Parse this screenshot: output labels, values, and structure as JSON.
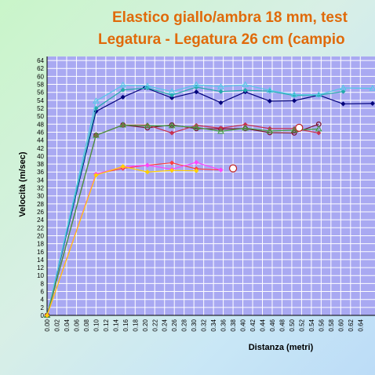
{
  "chart_data": {
    "type": "line",
    "title": "Elastico giallo/ambra 18 mm, test",
    "subtitle": "Legatura - Legatura 26 cm (campio",
    "xlabel": "Distanza (metri)",
    "ylabel": "Velocità (m/sec)",
    "xlim": [
      0,
      0.67
    ],
    "ylim": [
      0,
      65
    ],
    "x_ticks": [
      "0.00",
      "0.02",
      "0.04",
      "0.06",
      "0.08",
      "0.10",
      "0.12",
      "0.14",
      "0.16",
      "0.18",
      "0.20",
      "0.22",
      "0.24",
      "0.26",
      "0.28",
      "0.30",
      "0.32",
      "0.34",
      "0.36",
      "0.38",
      "0.40",
      "0.42",
      "0.44",
      "0.46",
      "0.48",
      "0.50",
      "0.52",
      "0.54",
      "0.56",
      "0.58",
      "0.60",
      "0.62",
      "0.64"
    ],
    "y_ticks": [
      "0",
      "2",
      "4",
      "6",
      "8",
      "10",
      "12",
      "14",
      "16",
      "18",
      "20",
      "22",
      "24",
      "26",
      "28",
      "30",
      "32",
      "34",
      "36",
      "38",
      "40",
      "42",
      "44",
      "46",
      "48",
      "50",
      "52",
      "54",
      "56",
      "58",
      "60",
      "62",
      "64"
    ],
    "grid": true,
    "plot_background": "#a9a9f2",
    "series": [
      {
        "color": "#00007a",
        "marker": "diamond",
        "x": [
          0,
          0.1,
          0.155,
          0.2,
          0.255,
          0.305,
          0.355,
          0.405,
          0.455,
          0.505,
          0.555,
          0.605,
          0.665
        ],
        "y": [
          0,
          51.2,
          54.8,
          57.2,
          54.6,
          56.1,
          53.4,
          56.1,
          53.8,
          53.9,
          55.3,
          53.1,
          53.2
        ]
      },
      {
        "color": "#22aaaa",
        "marker": "diamond",
        "x": [
          0,
          0.1,
          0.155,
          0.205,
          0.255,
          0.305,
          0.355,
          0.405,
          0.455,
          0.505,
          0.555,
          0.605
        ],
        "y": [
          0,
          52.0,
          56.6,
          57.1,
          55.3,
          57.3,
          56.2,
          56.5,
          56.3,
          55.2,
          55.3,
          56.2
        ]
      },
      {
        "color": "#55c8e8",
        "marker": "triangle",
        "x": [
          0,
          0.1,
          0.155,
          0.205,
          0.255,
          0.305,
          0.355,
          0.405,
          0.455,
          0.505,
          0.555,
          0.605,
          0.665
        ],
        "y": [
          0,
          53.8,
          57.8,
          57.6,
          56.2,
          57.9,
          57.4,
          57.9,
          56.5,
          55.4,
          55.4,
          57.1,
          57.0
        ]
      },
      {
        "color": "#7a1030",
        "marker": "circle",
        "x": [
          0,
          0.1,
          0.155,
          0.205,
          0.255,
          0.305,
          0.355,
          0.405,
          0.455,
          0.505,
          0.555
        ],
        "y": [
          0,
          45.2,
          47.8,
          47.1,
          47.8,
          46.9,
          46.8,
          46.9,
          45.9,
          45.8,
          48.0
        ]
      },
      {
        "color": "#c83050",
        "marker": "diamond",
        "x": [
          0,
          0.1,
          0.155,
          0.205,
          0.255,
          0.305,
          0.355,
          0.405,
          0.455,
          0.505,
          0.555
        ],
        "y": [
          0,
          45.2,
          47.8,
          47.8,
          45.8,
          47.7,
          47.0,
          47.9,
          46.9,
          46.9,
          45.8
        ]
      },
      {
        "color": "#40a040",
        "marker": "triangle",
        "x": [
          0,
          0.1,
          0.155,
          0.205,
          0.255,
          0.305,
          0.355,
          0.405,
          0.455,
          0.505,
          0.555
        ],
        "y": [
          0,
          45.2,
          47.8,
          47.6,
          47.6,
          47.2,
          46.2,
          47.0,
          46.3,
          46.5,
          46.8
        ]
      },
      {
        "color": "#ff4040",
        "marker": "diamond",
        "x": [
          0,
          0.1,
          0.155,
          0.205,
          0.255,
          0.305,
          0.355
        ],
        "y": [
          0,
          35.5,
          36.9,
          37.7,
          38.3,
          36.8,
          36.5
        ]
      },
      {
        "color": "#ff44ff",
        "marker": "diamond",
        "x": [
          0,
          0.1,
          0.155,
          0.205,
          0.255,
          0.305,
          0.355
        ],
        "y": [
          0,
          35.5,
          37.3,
          37.7,
          36.7,
          38.4,
          36.5
        ]
      },
      {
        "color": "#ffd000",
        "marker": "diamond",
        "x": [
          0,
          0.1,
          0.155,
          0.205,
          0.255,
          0.305
        ],
        "y": [
          0,
          35.2,
          37.4,
          36.0,
          36.4,
          36.3
        ]
      }
    ],
    "end_markers": [
      {
        "x": 0.38,
        "y": 36.9
      },
      {
        "x": 0.515,
        "y": 47.1
      }
    ]
  }
}
